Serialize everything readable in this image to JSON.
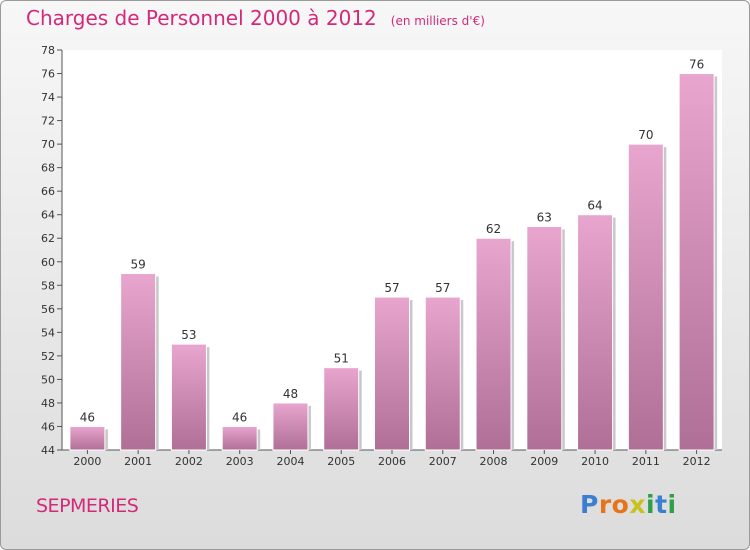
{
  "header": {
    "title": "Charges de Personnel 2000 à 2012",
    "subtitle": "(en milliers d'€)"
  },
  "footer": {
    "commune": "SEPMERIES",
    "logo_letters": [
      "P",
      "r",
      "o",
      "x",
      "i",
      "t",
      "i"
    ],
    "logo_colors": [
      "#3a7fd0",
      "#e8741a",
      "#e8741a",
      "#c9c21a",
      "#2f9f48",
      "#3a7fd0",
      "#2f9f48"
    ]
  },
  "colors": {
    "bar_top": "#e8a6cf",
    "bar_bottom": "#b06f96",
    "title": "#d4297b"
  },
  "chart_data": {
    "type": "bar",
    "title": "Charges de Personnel 2000 à 2012",
    "subtitle": "(en milliers d'€)",
    "categories": [
      "2000",
      "2001",
      "2002",
      "2003",
      "2004",
      "2005",
      "2006",
      "2007",
      "2008",
      "2009",
      "2010",
      "2011",
      "2012"
    ],
    "values": [
      46,
      59,
      53,
      46,
      48,
      51,
      57,
      57,
      62,
      63,
      64,
      70,
      76
    ],
    "ylim": [
      44,
      78
    ],
    "yticks": [
      44,
      46,
      48,
      50,
      52,
      54,
      56,
      58,
      60,
      62,
      64,
      66,
      68,
      70,
      72,
      74,
      76,
      78
    ],
    "grid": false,
    "data_labels": true
  }
}
